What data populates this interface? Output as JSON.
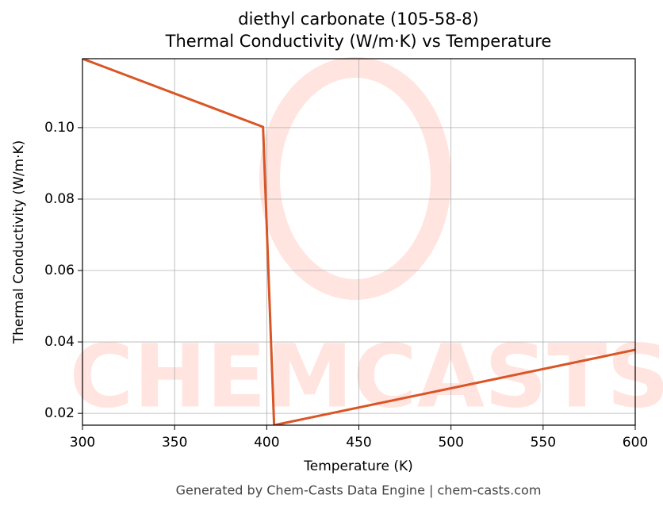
{
  "chart_data": {
    "type": "line",
    "title": "diethyl carbonate (105-58-8)",
    "subtitle": "Thermal Conductivity (W/m·K) vs Temperature",
    "x_label": "Temperature (K)",
    "y_label": "Thermal Conductivity (W/m·K)",
    "watermark": "CHEMCASTS",
    "footer": "Generated by Chem-Casts Data Engine | chem-casts.com",
    "x": [
      300,
      398,
      404,
      600
    ],
    "series": [
      {
        "name": "Thermal Conductivity",
        "color": "#d95525",
        "values": [
          0.1193,
          0.1002,
          0.0167,
          0.0378
        ]
      }
    ],
    "xlim": [
      300,
      600
    ],
    "xticks": [
      300,
      350,
      400,
      450,
      500,
      550,
      600
    ],
    "ylim": [
      0.0167,
      0.1193
    ],
    "yticks": [
      0.02,
      0.04,
      0.06,
      0.08,
      {
        "value": 0.1,
        "label": "0.10"
      }
    ],
    "grid": true
  }
}
